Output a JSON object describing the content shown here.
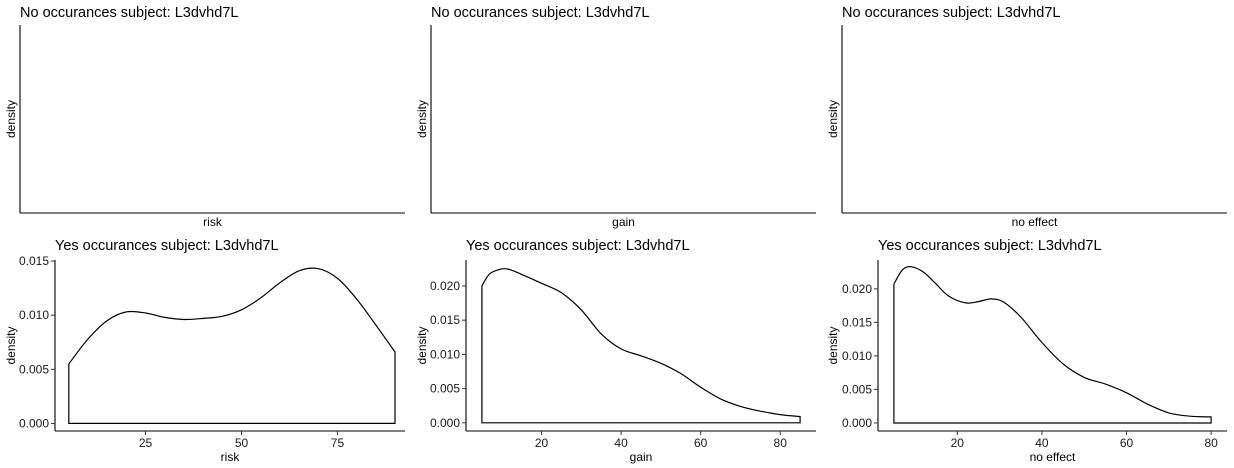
{
  "chart_data": [
    {
      "type": "area",
      "title": "No occurances subject:  L3dvhd7L",
      "xlabel": "risk",
      "ylabel": "density",
      "empty": true,
      "series": []
    },
    {
      "type": "area",
      "title": "No occurances subject:  L3dvhd7L",
      "xlabel": "gain",
      "ylabel": "density",
      "empty": true,
      "series": []
    },
    {
      "type": "area",
      "title": "No occurances subject:  L3dvhd7L",
      "xlabel": "no effect",
      "ylabel": "density",
      "empty": true,
      "series": []
    },
    {
      "type": "area",
      "title": "Yes occurances subject:  L3dvhd7L",
      "xlabel": "risk",
      "ylabel": "density",
      "xlim": [
        1.4,
        92.6
      ],
      "ylim": [
        -0.0007,
        0.0151
      ],
      "xticks": [
        25,
        50,
        75
      ],
      "xtick_labels": [
        "25",
        "50",
        "75"
      ],
      "yticks": [
        0,
        0.005,
        0.01,
        0.015
      ],
      "ytick_labels": [
        "0.000",
        "0.005",
        "0.010",
        "0.015"
      ],
      "series": [
        {
          "x": [
            5,
            10,
            15,
            20,
            25,
            30,
            35,
            40,
            45,
            50,
            55,
            60,
            65,
            70,
            75,
            80,
            85,
            90
          ],
          "y": [
            0.0055,
            0.0078,
            0.0095,
            0.0103,
            0.0102,
            0.0098,
            0.0096,
            0.0097,
            0.0099,
            0.0105,
            0.0116,
            0.013,
            0.0141,
            0.0143,
            0.0134,
            0.0115,
            0.0091,
            0.0066
          ]
        }
      ]
    },
    {
      "type": "area",
      "title": "Yes occurances subject:  L3dvhd7L",
      "xlabel": "gain",
      "ylabel": "density",
      "xlim": [
        1,
        89
      ],
      "ylim": [
        -0.0012,
        0.0238
      ],
      "xticks": [
        20,
        40,
        60,
        80
      ],
      "xtick_labels": [
        "20",
        "40",
        "60",
        "80"
      ],
      "yticks": [
        0,
        0.005,
        0.01,
        0.015,
        0.02
      ],
      "ytick_labels": [
        "0.000",
        "0.005",
        "0.010",
        "0.015",
        "0.020"
      ],
      "series": [
        {
          "x": [
            5,
            7,
            10,
            12,
            15,
            20,
            25,
            30,
            35,
            40,
            45,
            50,
            55,
            60,
            65,
            70,
            75,
            80,
            85
          ],
          "y": [
            0.02,
            0.0218,
            0.0225,
            0.0224,
            0.0217,
            0.0204,
            0.019,
            0.0165,
            0.013,
            0.0108,
            0.0098,
            0.0087,
            0.0072,
            0.0052,
            0.0035,
            0.0024,
            0.0017,
            0.0012,
            0.0009
          ]
        }
      ]
    },
    {
      "type": "area",
      "title": "Yes occurances subject:  L3dvhd7L",
      "xlabel": "no effect",
      "ylabel": "density",
      "xlim": [
        1.25,
        83.75
      ],
      "ylim": [
        -0.0012,
        0.0243
      ],
      "xticks": [
        20,
        40,
        60,
        80
      ],
      "xtick_labels": [
        "20",
        "40",
        "60",
        "80"
      ],
      "yticks": [
        0,
        0.005,
        0.01,
        0.015,
        0.02
      ],
      "ytick_labels": [
        "0.000",
        "0.005",
        "0.010",
        "0.015",
        "0.020"
      ],
      "series": [
        {
          "x": [
            5,
            7,
            9,
            12,
            15,
            18,
            22,
            25,
            28,
            31,
            35,
            40,
            45,
            50,
            55,
            60,
            65,
            70,
            75,
            80
          ],
          "y": [
            0.0207,
            0.0228,
            0.0233,
            0.0225,
            0.0207,
            0.0189,
            0.0179,
            0.0181,
            0.0185,
            0.018,
            0.0158,
            0.012,
            0.0088,
            0.0068,
            0.0058,
            0.0045,
            0.0028,
            0.0015,
            0.001,
            0.0009
          ]
        }
      ]
    }
  ]
}
